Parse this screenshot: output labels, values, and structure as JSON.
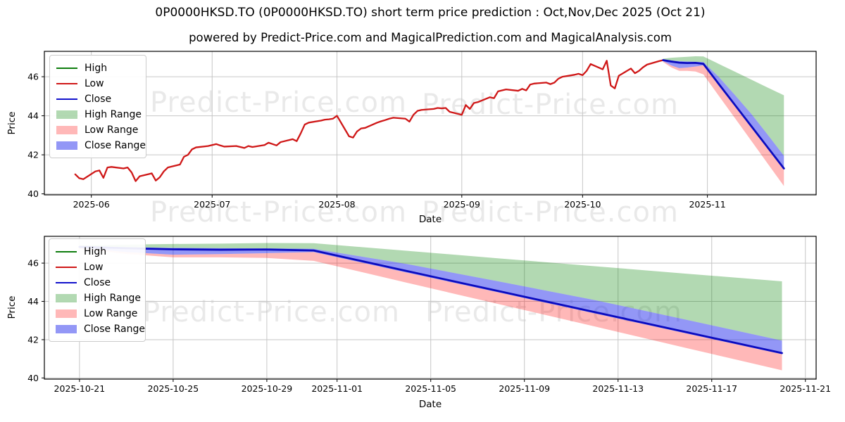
{
  "header": {
    "title": "0P0000HKSD.TO (0P0000HKSD.TO) short term price prediction : Oct,Nov,Dec 2025 (Oct 21)",
    "subtitle": "powered by Predict-Price.com and MagicalPrediction.com and MagicalAnalysis.com"
  },
  "watermark": {
    "text": "Predict-Price.com"
  },
  "legend": {
    "items": [
      {
        "label": "High",
        "type": "line",
        "color": "#0e7d0e"
      },
      {
        "label": "Low",
        "type": "line",
        "color": "#cf1717"
      },
      {
        "label": "Close",
        "type": "line",
        "color": "#1111cc"
      },
      {
        "label": "High Range",
        "type": "patch",
        "color": "rgba(0,128,0,0.30)"
      },
      {
        "label": "Low Range",
        "type": "patch",
        "color": "rgba(255,0,0,0.28)"
      },
      {
        "label": "Close Range",
        "type": "patch",
        "color": "rgba(25,35,235,0.47)"
      }
    ]
  },
  "chart_data": [
    {
      "id": "overview",
      "type": "line",
      "xlabel": "Date",
      "ylabel": "Price",
      "ylim": [
        39.95,
        47.3
      ],
      "xlim": [
        "2025-05-20T08:00",
        "2025-11-28T00:00"
      ],
      "yticks": [
        40,
        42,
        44,
        46
      ],
      "xticks": [
        {
          "label": "2025-06",
          "date": "2025-06-01"
        },
        {
          "label": "2025-07",
          "date": "2025-07-01"
        },
        {
          "label": "2025-08",
          "date": "2025-08-01"
        },
        {
          "label": "2025-09",
          "date": "2025-09-01"
        },
        {
          "label": "2025-10",
          "date": "2025-10-01"
        },
        {
          "label": "2025-11",
          "date": "2025-11-01"
        }
      ],
      "grid": true,
      "legend_position": "upper left",
      "bands": [
        {
          "name": "High Range",
          "color": "rgba(0,128,0,0.30)",
          "top_ref": "forecast_high_top",
          "bottom_ref": "forecast_close_top"
        },
        {
          "name": "Low Range",
          "color": "rgba(255,0,0,0.28)",
          "top_ref": "forecast_close_bottom",
          "bottom_ref": "forecast_low_bottom"
        },
        {
          "name": "Close Range",
          "color": "rgba(25,35,235,0.47)",
          "top_ref": "forecast_close_top",
          "bottom_ref": "forecast_close_bottom"
        }
      ],
      "series": [
        {
          "name": "Low",
          "color": "#cf1717",
          "width": 2.3,
          "data_ref": "history_low"
        },
        {
          "name": "Close",
          "color": "#0b0bbf",
          "width": 2.8,
          "data_ref": "forecast_close"
        }
      ]
    },
    {
      "id": "forecast-detail",
      "type": "line",
      "xlabel": "Date",
      "ylabel": "Price",
      "ylim": [
        39.94,
        47.4
      ],
      "xlim": [
        "2025-10-19T12:00",
        "2025-11-21T11:00"
      ],
      "yticks": [
        40,
        42,
        44,
        46
      ],
      "xticks": [
        {
          "label": "2025-10-21",
          "date": "2025-10-21"
        },
        {
          "label": "2025-10-25",
          "date": "2025-10-25"
        },
        {
          "label": "2025-10-29",
          "date": "2025-10-29"
        },
        {
          "label": "2025-11-01",
          "date": "2025-11-01"
        },
        {
          "label": "2025-11-05",
          "date": "2025-11-05"
        },
        {
          "label": "2025-11-09",
          "date": "2025-11-09"
        },
        {
          "label": "2025-11-13",
          "date": "2025-11-13"
        },
        {
          "label": "2025-11-17",
          "date": "2025-11-17"
        },
        {
          "label": "2025-11-21",
          "date": "2025-11-21"
        }
      ],
      "grid": true,
      "legend_position": "upper left",
      "bands": [
        {
          "name": "High Range",
          "color": "rgba(0,128,0,0.30)",
          "top_ref": "forecast_high_top",
          "bottom_ref": "forecast_close_top"
        },
        {
          "name": "Low Range",
          "color": "rgba(255,0,0,0.28)",
          "top_ref": "forecast_close_bottom",
          "bottom_ref": "forecast_low_bottom"
        },
        {
          "name": "Close Range",
          "color": "rgba(25,35,235,0.47)",
          "top_ref": "forecast_close_top",
          "bottom_ref": "forecast_close_bottom"
        }
      ],
      "series": [
        {
          "name": "Close",
          "color": "#0b0bbf",
          "width": 2.8,
          "data_ref": "forecast_close"
        }
      ]
    }
  ],
  "series_data": {
    "history_low": {
      "dates": [
        "2025-05-28",
        "2025-05-29",
        "2025-05-30",
        "2025-06-02",
        "2025-06-03",
        "2025-06-04",
        "2025-06-05",
        "2025-06-06",
        "2025-06-09",
        "2025-06-10",
        "2025-06-11",
        "2025-06-12",
        "2025-06-13",
        "2025-06-16",
        "2025-06-17",
        "2025-06-18",
        "2025-06-19",
        "2025-06-20",
        "2025-06-23",
        "2025-06-24",
        "2025-06-25",
        "2025-06-26",
        "2025-06-27",
        "2025-06-30",
        "2025-07-01",
        "2025-07-02",
        "2025-07-03",
        "2025-07-04",
        "2025-07-07",
        "2025-07-08",
        "2025-07-09",
        "2025-07-10",
        "2025-07-11",
        "2025-07-14",
        "2025-07-15",
        "2025-07-16",
        "2025-07-17",
        "2025-07-18",
        "2025-07-21",
        "2025-07-22",
        "2025-07-23",
        "2025-07-24",
        "2025-07-25",
        "2025-07-28",
        "2025-07-29",
        "2025-07-30",
        "2025-07-31",
        "2025-08-01",
        "2025-08-04",
        "2025-08-05",
        "2025-08-06",
        "2025-08-07",
        "2025-08-08",
        "2025-08-11",
        "2025-08-12",
        "2025-08-13",
        "2025-08-14",
        "2025-08-15",
        "2025-08-18",
        "2025-08-19",
        "2025-08-20",
        "2025-08-21",
        "2025-08-22",
        "2025-08-25",
        "2025-08-26",
        "2025-08-27",
        "2025-08-28",
        "2025-08-29",
        "2025-09-01",
        "2025-09-02",
        "2025-09-03",
        "2025-09-04",
        "2025-09-05",
        "2025-09-08",
        "2025-09-09",
        "2025-09-10",
        "2025-09-11",
        "2025-09-12",
        "2025-09-15",
        "2025-09-16",
        "2025-09-17",
        "2025-09-18",
        "2025-09-19",
        "2025-09-22",
        "2025-09-23",
        "2025-09-24",
        "2025-09-25",
        "2025-09-26",
        "2025-09-29",
        "2025-09-30",
        "2025-10-01",
        "2025-10-02",
        "2025-10-03",
        "2025-10-06",
        "2025-10-07",
        "2025-10-08",
        "2025-10-09",
        "2025-10-10",
        "2025-10-13",
        "2025-10-14",
        "2025-10-15",
        "2025-10-16",
        "2025-10-17",
        "2025-10-20",
        "2025-10-21"
      ],
      "values": [
        41.0,
        40.8,
        40.75,
        41.15,
        41.2,
        40.82,
        41.35,
        41.38,
        41.3,
        41.35,
        41.1,
        40.65,
        40.9,
        41.05,
        40.68,
        40.85,
        41.15,
        41.35,
        41.5,
        41.9,
        42.0,
        42.28,
        42.38,
        42.45,
        42.5,
        42.55,
        42.48,
        42.42,
        42.45,
        42.4,
        42.35,
        42.45,
        42.4,
        42.5,
        42.62,
        42.55,
        42.48,
        42.65,
        42.8,
        42.7,
        43.1,
        43.55,
        43.65,
        43.75,
        43.8,
        43.82,
        43.85,
        44.0,
        42.95,
        42.88,
        43.2,
        43.35,
        43.38,
        43.65,
        43.72,
        43.78,
        43.85,
        43.9,
        43.85,
        43.7,
        44.05,
        44.25,
        44.3,
        44.35,
        44.4,
        44.38,
        44.4,
        44.2,
        44.05,
        44.55,
        44.35,
        44.65,
        44.7,
        44.95,
        44.9,
        45.25,
        45.3,
        45.35,
        45.28,
        45.38,
        45.3,
        45.6,
        45.65,
        45.7,
        45.62,
        45.7,
        45.9,
        46.0,
        46.1,
        46.15,
        46.08,
        46.3,
        46.65,
        46.38,
        46.82,
        45.55,
        45.4,
        46.05,
        46.42,
        46.18,
        46.3,
        46.48,
        46.62,
        46.8,
        46.85
      ]
    },
    "forecast_close": {
      "dates": [
        "2025-10-21",
        "2025-10-23",
        "2025-10-25",
        "2025-10-27",
        "2025-10-29",
        "2025-10-31",
        "2025-11-04",
        "2025-11-08",
        "2025-11-12",
        "2025-11-16",
        "2025-11-20"
      ],
      "values": [
        46.85,
        46.78,
        46.72,
        46.7,
        46.71,
        46.66,
        45.58,
        44.51,
        43.44,
        42.37,
        41.3
      ]
    },
    "forecast_close_top": {
      "dates": [
        "2025-10-21",
        "2025-10-23",
        "2025-10-25",
        "2025-10-27",
        "2025-10-29",
        "2025-10-31",
        "2025-11-04",
        "2025-11-08",
        "2025-11-12",
        "2025-11-16",
        "2025-11-20"
      ],
      "values": [
        46.88,
        46.83,
        46.8,
        46.78,
        46.77,
        46.75,
        45.95,
        45.02,
        44.07,
        43.02,
        41.95
      ]
    },
    "forecast_close_bottom": {
      "dates": [
        "2025-10-21",
        "2025-10-23",
        "2025-10-25",
        "2025-10-27",
        "2025-10-29",
        "2025-10-31",
        "2025-11-04",
        "2025-11-08",
        "2025-11-12",
        "2025-11-16",
        "2025-11-20"
      ],
      "values": [
        46.8,
        46.58,
        46.44,
        46.47,
        46.52,
        46.58,
        45.5,
        44.44,
        43.37,
        42.3,
        41.24
      ]
    },
    "forecast_high_top": {
      "dates": [
        "2025-10-21",
        "2025-10-23",
        "2025-10-25",
        "2025-10-27",
        "2025-10-29",
        "2025-10-31",
        "2025-11-04",
        "2025-11-08",
        "2025-11-12",
        "2025-11-16",
        "2025-11-20"
      ],
      "values": [
        46.92,
        46.97,
        47.0,
        47.02,
        47.05,
        47.04,
        46.64,
        46.24,
        45.84,
        45.44,
        45.05
      ]
    },
    "forecast_low_bottom": {
      "dates": [
        "2025-10-21",
        "2025-10-23",
        "2025-10-25",
        "2025-10-27",
        "2025-10-29",
        "2025-10-31",
        "2025-11-04",
        "2025-11-08",
        "2025-11-12",
        "2025-11-16",
        "2025-11-20"
      ],
      "values": [
        46.75,
        46.48,
        46.3,
        46.3,
        46.27,
        46.12,
        44.97,
        43.83,
        42.69,
        41.54,
        40.4
      ]
    }
  }
}
